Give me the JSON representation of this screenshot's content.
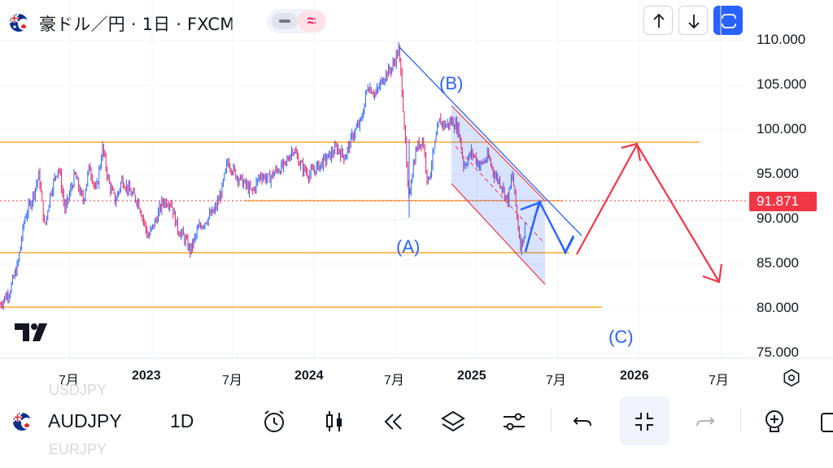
{
  "header": {
    "title": "豪ドル／円 · 1日 · FXCM",
    "pill_icon": "≈",
    "buttons": [
      "up-arrow-icon",
      "down-arrow-icon",
      "fullscreen-icon"
    ]
  },
  "price_axis": {
    "labels": [
      "110.000",
      "105.000",
      "100.000",
      "95.000",
      "90.000",
      "85.000",
      "80.000",
      "75.000"
    ],
    "current": "91.871"
  },
  "time_axis": {
    "labels": [
      {
        "text": "7月",
        "year": false
      },
      {
        "text": "2023",
        "year": true
      },
      {
        "text": "7月",
        "year": false
      },
      {
        "text": "2024",
        "year": true
      },
      {
        "text": "7月",
        "year": false
      },
      {
        "text": "2025",
        "year": true
      },
      {
        "text": "7月",
        "year": false
      },
      {
        "text": "2026",
        "year": true
      },
      {
        "text": "7月",
        "year": false
      }
    ]
  },
  "annotations": {
    "a": "(A)",
    "b": "(B)",
    "c": "(C)"
  },
  "bottom": {
    "ghost_top": "USDJPY",
    "ghost_bottom": "EURJPY",
    "symbol": "AUDJPY",
    "timeframe": "1D"
  },
  "colors": {
    "up": "#2962ff",
    "down": "#e91e63",
    "level": "#ff9800",
    "current": "#f23645",
    "projection": "#f23645",
    "channel": "#2962ff"
  }
}
